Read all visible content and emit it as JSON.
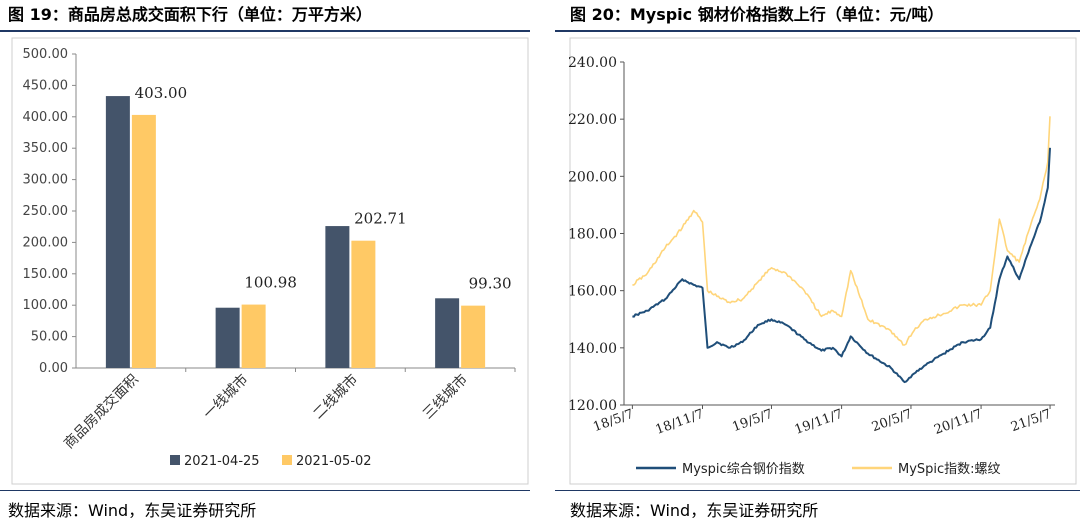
{
  "left_panel": {
    "title": "图 19：商品房总成交面积下行（单位：万平方米）",
    "source": "数据来源：Wind，东吴证券研究所"
  },
  "right_panel": {
    "title": "图 20：Myspic 钢材价格指数上行（单位：元/吨）",
    "source": "数据来源：Wind，东吴证券研究所"
  },
  "colors": {
    "dark_series": "#44546a",
    "light_series": "#ffc965",
    "line_dark": "#1f4e79",
    "line_light": "#ffd57a",
    "rule": "#1f3864"
  },
  "chart_data": [
    {
      "type": "bar",
      "categories": [
        "商品房成交面积",
        "一线城市",
        "二线城市",
        "三线城市"
      ],
      "series": [
        {
          "name": "2021-04-25",
          "values": [
            433,
            96,
            226,
            111
          ]
        },
        {
          "name": "2021-05-02",
          "values": [
            403.0,
            100.98,
            202.71,
            99.3
          ]
        }
      ],
      "data_labels": [
        "403.00",
        "100.98",
        "202.71",
        "99.30"
      ],
      "ylim": [
        0,
        500
      ],
      "yticks": [
        "0.00",
        "50.00",
        "100.00",
        "150.00",
        "200.00",
        "250.00",
        "300.00",
        "350.00",
        "400.00",
        "450.00",
        "500.00"
      ],
      "legend_position": "bottom"
    },
    {
      "type": "line",
      "xtick_labels": [
        "18/5/7",
        "18/11/7",
        "19/5/7",
        "19/11/7",
        "20/5/7",
        "20/11/7",
        "21/5/7"
      ],
      "ylim": [
        120,
        240
      ],
      "yticks": [
        "120.00",
        "140.00",
        "160.00",
        "180.00",
        "200.00",
        "220.00",
        "240.00"
      ],
      "series": [
        {
          "name": "Myspic综合钢价指数",
          "x": [
            "2018-05-07",
            "2018-06-15",
            "2018-08-01",
            "2018-09-15",
            "2018-10-15",
            "2018-11-07",
            "2018-11-20",
            "2018-12-15",
            "2019-01-15",
            "2019-02-20",
            "2019-04-01",
            "2019-05-07",
            "2019-06-15",
            "2019-08-01",
            "2019-09-15",
            "2019-10-15",
            "2019-11-07",
            "2019-12-01",
            "2020-01-15",
            "2020-03-15",
            "2020-04-20",
            "2020-05-15",
            "2020-06-15",
            "2020-08-01",
            "2020-09-20",
            "2020-11-07",
            "2020-12-01",
            "2020-12-25",
            "2021-01-15",
            "2021-02-15",
            "2021-03-15",
            "2021-04-10",
            "2021-05-01",
            "2021-05-07"
          ],
          "y": [
            151,
            153,
            157,
            164,
            162,
            161,
            140,
            142,
            140,
            142,
            148,
            150,
            148,
            143,
            139,
            140,
            137,
            144,
            138,
            133,
            128,
            131,
            134,
            138,
            142,
            143,
            147,
            164,
            172,
            164,
            175,
            184,
            196,
            210
          ]
        },
        {
          "name": "MySpic指数:螺纹",
          "x": [
            "2018-05-07",
            "2018-06-15",
            "2018-08-01",
            "2018-09-15",
            "2018-10-15",
            "2018-11-07",
            "2018-11-20",
            "2018-12-15",
            "2019-01-15",
            "2019-02-20",
            "2019-04-01",
            "2019-05-07",
            "2019-06-15",
            "2019-08-01",
            "2019-09-15",
            "2019-10-15",
            "2019-11-07",
            "2019-12-01",
            "2020-01-15",
            "2020-03-15",
            "2020-04-20",
            "2020-05-15",
            "2020-06-15",
            "2020-08-01",
            "2020-09-20",
            "2020-11-07",
            "2020-12-01",
            "2020-12-25",
            "2021-01-15",
            "2021-02-15",
            "2021-03-15",
            "2021-04-10",
            "2021-05-01",
            "2021-05-07"
          ],
          "y": [
            162,
            166,
            175,
            182,
            188,
            184,
            160,
            158,
            156,
            157,
            163,
            168,
            166,
            160,
            151,
            153,
            151,
            167,
            150,
            146,
            141,
            146,
            150,
            152,
            155,
            155,
            160,
            185,
            174,
            170,
            182,
            192,
            205,
            221
          ]
        }
      ],
      "legend_position": "bottom"
    }
  ]
}
